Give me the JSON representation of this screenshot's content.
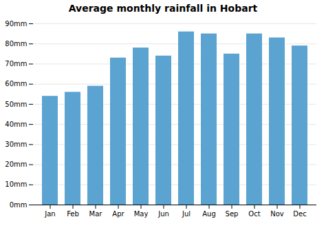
{
  "chart_data": {
    "type": "bar",
    "title": "Average monthly rainfall in Hobart",
    "categories": [
      "Jan",
      "Feb",
      "Mar",
      "Apr",
      "May",
      "Jun",
      "Jul",
      "Aug",
      "Sep",
      "Oct",
      "Nov",
      "Dec"
    ],
    "values": [
      54,
      56,
      59,
      73,
      78,
      74,
      86,
      85,
      75,
      85,
      83,
      79
    ],
    "color": "#5ba3d0",
    "ylim": [
      0,
      90
    ],
    "yticks": [
      {
        "value": 0,
        "label": "0mm"
      },
      {
        "value": 10,
        "label": "10mm"
      },
      {
        "value": 20,
        "label": "20mm"
      },
      {
        "value": 30,
        "label": "30mm"
      },
      {
        "value": 40,
        "label": "40mm"
      },
      {
        "value": 50,
        "label": "50mm"
      },
      {
        "value": 60,
        "label": "60mm"
      },
      {
        "value": 70,
        "label": "70mm"
      },
      {
        "value": 80,
        "label": "80mm"
      },
      {
        "value": 90,
        "label": "90mm"
      }
    ],
    "grid": true
  }
}
